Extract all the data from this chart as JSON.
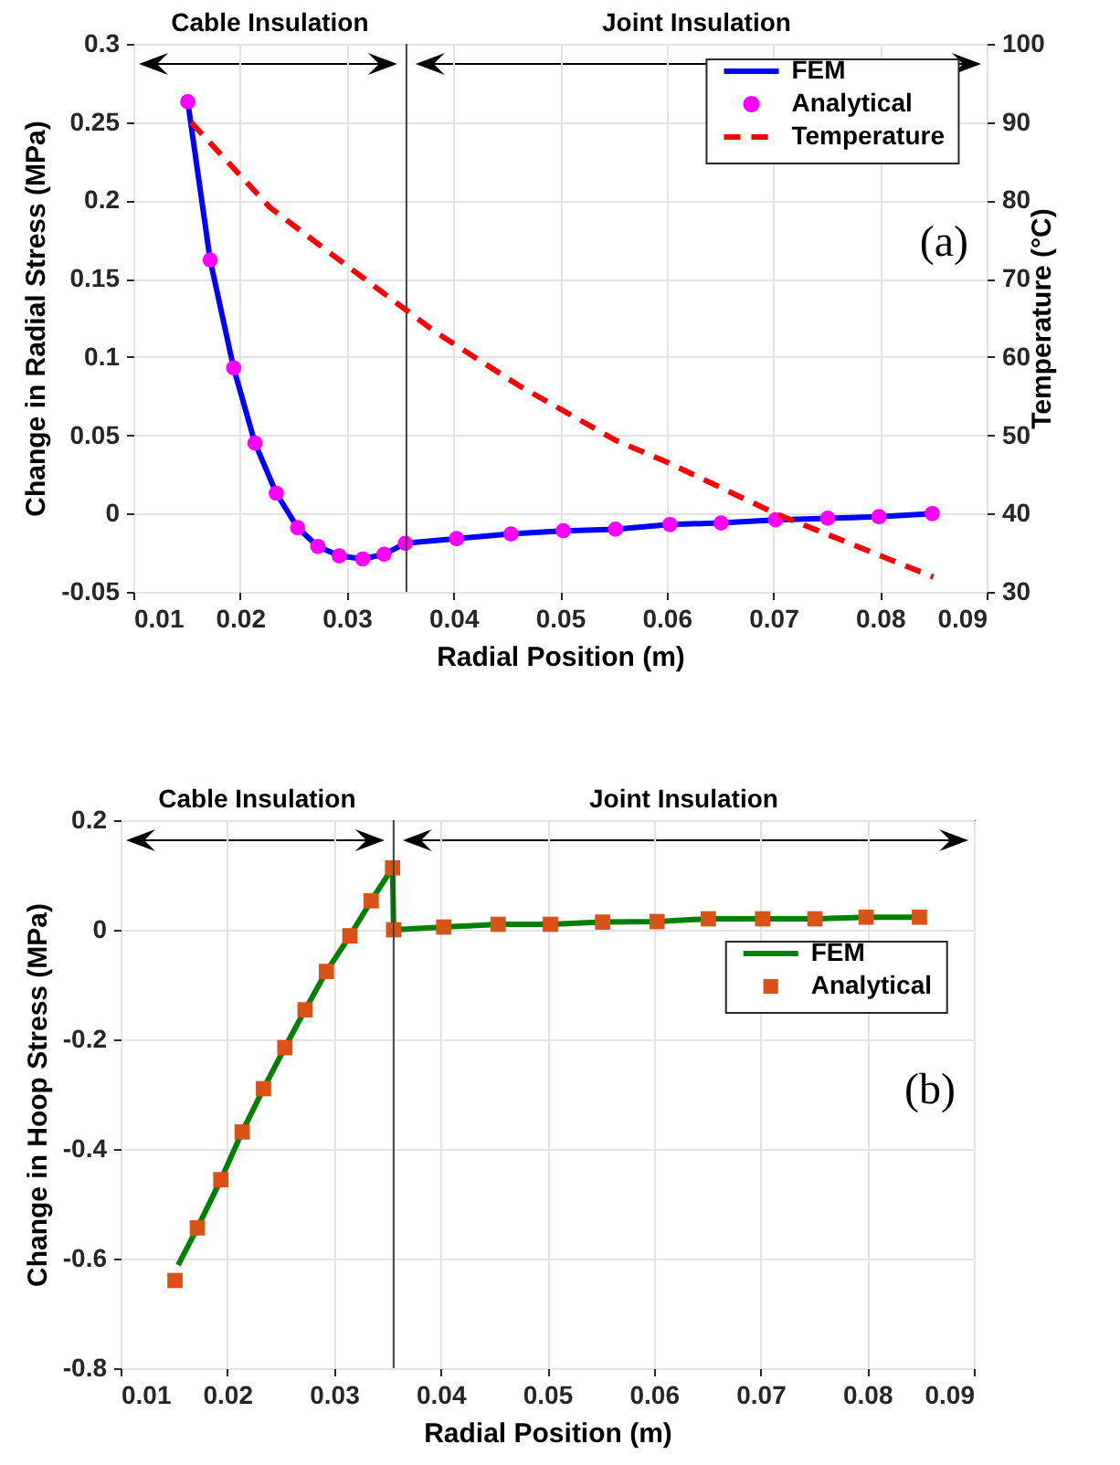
{
  "chart_data": [
    {
      "type": "line",
      "xlabel": "Radial Position (m)",
      "ylabel": "Change in Radial Stress (MPa)",
      "y2label": "Temperature (°C)",
      "xlim": [
        0.01,
        0.09
      ],
      "xticks": [
        0.01,
        0.02,
        0.03,
        0.04,
        0.05,
        0.06,
        0.07,
        0.08,
        0.09
      ],
      "ylim": [
        -0.05,
        0.3
      ],
      "yticks": [
        -0.05,
        0,
        0.05,
        0.1,
        0.15,
        0.2,
        0.25,
        0.3
      ],
      "y2lim": [
        30,
        100
      ],
      "y2ticks": [
        30,
        40,
        50,
        60,
        70,
        80,
        90,
        100
      ],
      "grid": true,
      "legend": "top right",
      "ref_lines": [
        {
          "axis": "x",
          "value": 0.0356,
          "color": "#404040"
        }
      ],
      "annotations": [
        "Cable Insulation",
        "Joint Insulation",
        "(a)"
      ],
      "series": [
        {
          "name": "FEM",
          "type": "line",
          "color": "#0000ff",
          "x": [
            0.0151,
            0.0172,
            0.0194,
            0.0214,
            0.0234,
            0.0254,
            0.0273,
            0.0293,
            0.0315,
            0.0335,
            0.0355,
            0.0403,
            0.0454,
            0.0503,
            0.0552,
            0.0603,
            0.0651,
            0.0702,
            0.0751,
            0.0799,
            0.0849
          ],
          "values": [
            0.263,
            0.162,
            0.093,
            0.045,
            0.013,
            -0.009,
            -0.021,
            -0.027,
            -0.029,
            -0.026,
            -0.019,
            -0.016,
            -0.013,
            -0.011,
            -0.01,
            -0.007,
            -0.006,
            -0.004,
            -0.003,
            -0.002,
            0.0
          ]
        },
        {
          "name": "Analytical",
          "type": "scatter",
          "marker": "circle",
          "color": "#ff00ff",
          "x": [
            0.0151,
            0.0172,
            0.0194,
            0.0214,
            0.0234,
            0.0254,
            0.0273,
            0.0293,
            0.0315,
            0.0335,
            0.0355,
            0.0403,
            0.0454,
            0.0503,
            0.0552,
            0.0603,
            0.0651,
            0.0702,
            0.0751,
            0.0799,
            0.0849
          ],
          "values": [
            0.263,
            0.162,
            0.093,
            0.045,
            0.013,
            -0.009,
            -0.021,
            -0.027,
            -0.029,
            -0.026,
            -0.019,
            -0.016,
            -0.013,
            -0.011,
            -0.01,
            -0.007,
            -0.006,
            -0.004,
            -0.003,
            -0.002,
            0.0
          ]
        },
        {
          "name": "Temperature",
          "type": "line",
          "line_style": "dashed",
          "axis": "y2",
          "color": "#ff0000",
          "x": [
            0.0154,
            0.0228,
            0.0291,
            0.0382,
            0.0462,
            0.0553,
            0.0603,
            0.0702,
            0.085
          ],
          "values": [
            90,
            79.1,
            72.6,
            63.3,
            56.3,
            49.3,
            46.4,
            40,
            31.9
          ]
        }
      ]
    },
    {
      "type": "line",
      "xlabel": "Radial Position (m)",
      "ylabel": "Change in Hoop Stress (MPa)",
      "xlim": [
        0.01,
        0.09
      ],
      "xticks": [
        0.01,
        0.02,
        0.03,
        0.04,
        0.05,
        0.06,
        0.07,
        0.08,
        0.09
      ],
      "ylim": [
        -0.8,
        0.2
      ],
      "yticks": [
        -0.8,
        -0.6,
        -0.4,
        -0.2,
        0,
        0.2
      ],
      "grid": true,
      "legend": "top right",
      "ref_lines": [
        {
          "axis": "x",
          "value": 0.0356,
          "color": "#404040"
        }
      ],
      "annotations": [
        "Cable Insulation",
        "Joint Insulation",
        "(b)"
      ],
      "series": [
        {
          "name": "FEM",
          "type": "line",
          "color": "#008000",
          "x": [
            0.0154,
            0.0172,
            0.0194,
            0.0214,
            0.0234,
            0.0254,
            0.0273,
            0.0293,
            0.0315,
            0.0335,
            0.0355,
            0.0356,
            0.0403,
            0.0454,
            0.0503,
            0.0552,
            0.0603,
            0.0651,
            0.0702,
            0.0751,
            0.0799,
            0.0849
          ],
          "values": [
            -0.612,
            -0.544,
            -0.456,
            -0.369,
            -0.29,
            -0.215,
            -0.146,
            -0.076,
            -0.011,
            0.053,
            0.113,
            0.0,
            0.005,
            0.01,
            0.01,
            0.014,
            0.015,
            0.02,
            0.02,
            0.02,
            0.023,
            0.023
          ]
        },
        {
          "name": "Analytical",
          "type": "scatter",
          "marker": "square",
          "color": "#d95319",
          "x": [
            0.0151,
            0.0172,
            0.0194,
            0.0214,
            0.0234,
            0.0254,
            0.0273,
            0.0293,
            0.0315,
            0.0335,
            0.0355,
            0.0356,
            0.0403,
            0.0454,
            0.0503,
            0.0552,
            0.0603,
            0.0651,
            0.0702,
            0.0751,
            0.0799,
            0.0849
          ],
          "values": [
            -0.64,
            -0.544,
            -0.456,
            -0.369,
            -0.29,
            -0.215,
            -0.146,
            -0.076,
            -0.011,
            0.053,
            0.113,
            0.0,
            0.005,
            0.01,
            0.01,
            0.014,
            0.015,
            0.02,
            0.02,
            0.02,
            0.023,
            0.023
          ]
        }
      ]
    }
  ]
}
